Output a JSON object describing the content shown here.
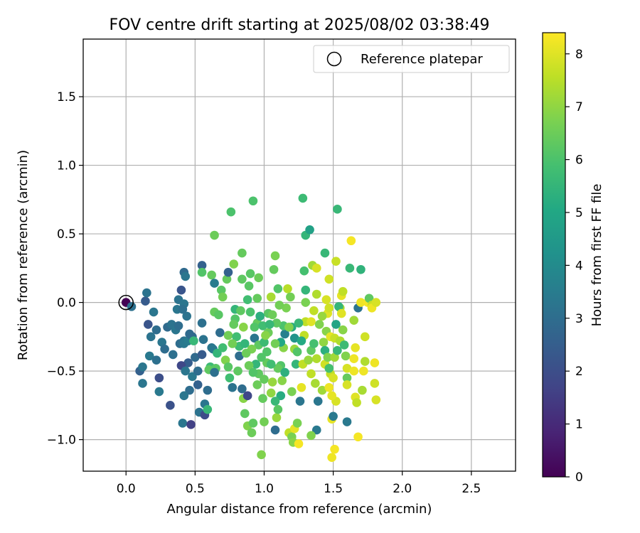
{
  "chart_data": {
    "type": "scatter",
    "title": "FOV centre drift starting at 2025/08/02 03:38:49",
    "xlabel": "Angular distance from reference (arcmin)",
    "ylabel": "Rotation from reference (arcmin)",
    "xlim": [
      -0.31,
      2.82
    ],
    "ylim": [
      -1.23,
      1.92
    ],
    "xticks": [
      "0.0",
      "0.5",
      "1.0",
      "1.5",
      "2.0",
      "2.5"
    ],
    "xtick_values": [
      0,
      0.5,
      1.0,
      1.5,
      2.0,
      2.5
    ],
    "yticks": [
      "−1.0",
      "−0.5",
      "0.0",
      "0.5",
      "1.0",
      "1.5"
    ],
    "ytick_values": [
      -1.0,
      -0.5,
      0,
      0.5,
      1.0,
      1.5
    ],
    "grid": true,
    "legend": {
      "position": "top-right",
      "label": "Reference platepar"
    },
    "reference_point": {
      "x": 0.0,
      "y": 0.0
    },
    "colorbar": {
      "label": "Hours from first FF file",
      "range": [
        0,
        8.4
      ],
      "ticks": [
        "0",
        "1",
        "2",
        "3",
        "4",
        "5",
        "6",
        "7",
        "8"
      ],
      "tick_values": [
        0,
        1,
        2,
        3,
        4,
        5,
        6,
        7,
        8
      ],
      "colormap": "viridis"
    },
    "points_note_fields": [
      "x",
      "y",
      "hours"
    ],
    "points": [
      [
        0.0,
        0.0,
        0.0
      ],
      [
        0.04,
        -0.03,
        3.1
      ],
      [
        0.14,
        0.01,
        2.4
      ],
      [
        0.15,
        0.07,
        3.2
      ],
      [
        0.16,
        -0.16,
        2.2
      ],
      [
        0.2,
        -0.07,
        3.3
      ],
      [
        0.22,
        -0.2,
        3.0
      ],
      [
        0.18,
        -0.25,
        3.2
      ],
      [
        0.1,
        -0.5,
        2.6
      ],
      [
        0.12,
        -0.47,
        3.3
      ],
      [
        0.17,
        -0.39,
        3.4
      ],
      [
        0.22,
        -0.42,
        3.1
      ],
      [
        0.12,
        -0.59,
        3.3
      ],
      [
        0.24,
        -0.55,
        2.0
      ],
      [
        0.24,
        -0.65,
        3.4
      ],
      [
        0.26,
        -0.29,
        3.3
      ],
      [
        0.3,
        -0.18,
        2.9
      ],
      [
        0.33,
        -0.16,
        3.2
      ],
      [
        0.28,
        -0.34,
        3.0
      ],
      [
        0.34,
        -0.38,
        3.1
      ],
      [
        0.32,
        -0.75,
        2.1
      ],
      [
        0.36,
        -0.2,
        3.3
      ],
      [
        0.38,
        -0.17,
        3.0
      ],
      [
        0.39,
        -0.3,
        3.0
      ],
      [
        0.42,
        -0.28,
        3.2
      ],
      [
        0.42,
        -0.3,
        3.4
      ],
      [
        0.45,
        -0.28,
        3.5
      ],
      [
        0.38,
        0.02,
        3.2
      ],
      [
        0.4,
        0.09,
        2.2
      ],
      [
        0.37,
        -0.05,
        3.3
      ],
      [
        0.42,
        0.22,
        2.9
      ],
      [
        0.43,
        0.19,
        3.3
      ],
      [
        0.42,
        -0.01,
        3.3
      ],
      [
        0.44,
        -0.1,
        3.2
      ],
      [
        0.41,
        -0.05,
        3.1
      ],
      [
        0.46,
        -0.23,
        2.9
      ],
      [
        0.48,
        -0.25,
        2.9
      ],
      [
        0.49,
        -0.28,
        5.6
      ],
      [
        0.45,
        -0.44,
        2.5
      ],
      [
        0.4,
        -0.46,
        1.8
      ],
      [
        0.43,
        -0.5,
        3.3
      ],
      [
        0.46,
        -0.64,
        3.0
      ],
      [
        0.42,
        -0.68,
        3.3
      ],
      [
        0.41,
        -0.88,
        3.3
      ],
      [
        0.47,
        -0.89,
        1.6
      ],
      [
        0.48,
        -0.54,
        3.4
      ],
      [
        0.52,
        -0.5,
        3.0
      ],
      [
        0.5,
        -0.4,
        2.9
      ],
      [
        0.52,
        -0.6,
        2.6
      ],
      [
        0.55,
        -0.38,
        2.4
      ],
      [
        0.56,
        -0.27,
        3.2
      ],
      [
        0.55,
        -0.15,
        3.1
      ],
      [
        0.53,
        -0.8,
        3.2
      ],
      [
        0.57,
        -0.74,
        3.3
      ],
      [
        0.57,
        -0.82,
        1.9
      ],
      [
        0.59,
        -0.78,
        5.6
      ],
      [
        0.59,
        -0.64,
        3.0
      ],
      [
        0.55,
        0.27,
        2.6
      ],
      [
        0.55,
        0.22,
        6.1
      ],
      [
        0.62,
        0.2,
        6.4
      ],
      [
        0.61,
        -0.47,
        5.7
      ],
      [
        0.6,
        -0.49,
        6.3
      ],
      [
        0.62,
        -0.33,
        3.3
      ],
      [
        0.63,
        -0.34,
        3.4
      ],
      [
        0.65,
        -0.48,
        6.2
      ],
      [
        0.64,
        -0.51,
        3.1
      ],
      [
        0.64,
        -0.07,
        6.4
      ],
      [
        0.64,
        0.14,
        3.5
      ],
      [
        0.64,
        0.49,
        6.5
      ],
      [
        0.67,
        -0.09,
        6.2
      ],
      [
        0.66,
        -0.37,
        5.5
      ],
      [
        0.68,
        -0.22,
        3.0
      ],
      [
        0.69,
        0.09,
        6.2
      ],
      [
        0.7,
        0.04,
        6.6
      ],
      [
        0.73,
        0.17,
        6.4
      ],
      [
        0.74,
        0.22,
        2.6
      ],
      [
        0.74,
        -0.24,
        6.6
      ],
      [
        0.77,
        -0.62,
        3.2
      ],
      [
        0.76,
        0.66,
        6.0
      ],
      [
        0.78,
        0.28,
        6.8
      ],
      [
        0.79,
        -0.12,
        6.1
      ],
      [
        0.8,
        -0.25,
        5.8
      ],
      [
        0.82,
        -0.32,
        5.7
      ],
      [
        0.82,
        -0.39,
        3.0
      ],
      [
        0.81,
        -0.5,
        6.3
      ],
      [
        0.84,
        -0.63,
        3.0
      ],
      [
        0.85,
        -0.7,
        6.9
      ],
      [
        0.88,
        -0.68,
        1.8
      ],
      [
        0.86,
        -0.81,
        6.3
      ],
      [
        0.88,
        -0.9,
        6.8
      ],
      [
        0.84,
        0.17,
        6.3
      ],
      [
        0.84,
        0.36,
        6.4
      ],
      [
        0.89,
        0.12,
        6.2
      ],
      [
        0.9,
        0.21,
        6.2
      ],
      [
        0.92,
        0.74,
        6.0
      ],
      [
        0.96,
        0.18,
        6.5
      ],
      [
        0.88,
        0.02,
        5.8
      ],
      [
        0.9,
        -0.07,
        6.0
      ],
      [
        0.95,
        -0.15,
        6.4
      ],
      [
        0.93,
        -0.26,
        3.3
      ],
      [
        0.96,
        -0.31,
        6.3
      ],
      [
        0.91,
        -0.34,
        6.7
      ],
      [
        0.94,
        -0.45,
        5.5
      ],
      [
        0.96,
        -0.52,
        6.3
      ],
      [
        0.91,
        -0.95,
        6.5
      ],
      [
        0.92,
        -0.88,
        6.3
      ],
      [
        0.99,
        -0.7,
        6.4
      ],
      [
        1.0,
        -0.56,
        6.4
      ],
      [
        1.02,
        -0.44,
        6.4
      ],
      [
        1.03,
        -0.22,
        6.5
      ],
      [
        1.03,
        -0.08,
        6.2
      ],
      [
        1.05,
        0.04,
        7.3
      ],
      [
        1.07,
        0.24,
        6.4
      ],
      [
        1.08,
        0.34,
        6.7
      ],
      [
        1.08,
        -0.93,
        3.0
      ],
      [
        1.09,
        -0.84,
        7.1
      ],
      [
        1.12,
        -0.68,
        5.2
      ],
      [
        1.12,
        -0.46,
        6.1
      ],
      [
        1.1,
        -0.48,
        6.4
      ],
      [
        1.14,
        -0.33,
        6.9
      ],
      [
        1.15,
        -0.23,
        3.6
      ],
      [
        1.16,
        -0.04,
        6.7
      ],
      [
        1.17,
        0.1,
        7.5
      ],
      [
        1.19,
        0.04,
        6.6
      ],
      [
        1.2,
        -0.18,
        5.2
      ],
      [
        1.22,
        -0.34,
        7.1
      ],
      [
        1.23,
        -0.45,
        5.5
      ],
      [
        1.2,
        -0.65,
        6.7
      ],
      [
        1.18,
        -0.95,
        7.6
      ],
      [
        1.2,
        -0.98,
        6.7
      ],
      [
        1.21,
        -1.02,
        6.9
      ],
      [
        1.22,
        -0.92,
        8.1
      ],
      [
        1.24,
        -0.88,
        6.7
      ],
      [
        1.25,
        -1.03,
        8.3
      ],
      [
        1.26,
        -0.72,
        3.3
      ],
      [
        1.27,
        -0.62,
        8.1
      ],
      [
        1.28,
        -0.45,
        7.6
      ],
      [
        1.29,
        -0.24,
        7.6
      ],
      [
        1.3,
        -0.14,
        7.6
      ],
      [
        1.3,
        0.0,
        6.7
      ],
      [
        1.3,
        0.09,
        5.5
      ],
      [
        1.29,
        0.23,
        5.9
      ],
      [
        1.28,
        0.76,
        5.7
      ],
      [
        1.3,
        0.49,
        5.5
      ],
      [
        1.33,
        0.53,
        4.8
      ],
      [
        1.35,
        0.27,
        7.2
      ],
      [
        1.38,
        0.25,
        7.9
      ],
      [
        1.38,
        0.06,
        7.4
      ],
      [
        1.36,
        -0.06,
        7.6
      ],
      [
        1.34,
        -0.14,
        8.0
      ],
      [
        1.34,
        -0.35,
        6.3
      ],
      [
        1.38,
        -0.41,
        7.4
      ],
      [
        1.37,
        -0.59,
        7.3
      ],
      [
        1.39,
        -0.72,
        3.3
      ],
      [
        1.38,
        -0.93,
        3.4
      ],
      [
        1.34,
        -0.97,
        6.8
      ],
      [
        1.42,
        -0.64,
        7.2
      ],
      [
        1.44,
        -0.45,
        7.8
      ],
      [
        1.45,
        -0.21,
        6.9
      ],
      [
        1.46,
        -0.08,
        8.0
      ],
      [
        1.45,
        0.02,
        7.9
      ],
      [
        1.47,
        0.17,
        7.8
      ],
      [
        1.44,
        0.36,
        5.6
      ],
      [
        1.47,
        -0.04,
        7.8
      ],
      [
        1.48,
        -0.25,
        8.1
      ],
      [
        1.48,
        -0.52,
        7.6
      ],
      [
        1.5,
        -0.55,
        7.9
      ],
      [
        1.47,
        -0.62,
        8.2
      ],
      [
        1.52,
        -0.72,
        7.9
      ],
      [
        1.49,
        -0.68,
        8.1
      ],
      [
        1.49,
        -0.85,
        8.1
      ],
      [
        1.49,
        -1.13,
        8.2
      ],
      [
        1.51,
        -1.07,
        8.3
      ],
      [
        1.5,
        -0.83,
        3.4
      ],
      [
        1.51,
        -0.26,
        7.7
      ],
      [
        1.52,
        -0.16,
        4.9
      ],
      [
        1.52,
        0.3,
        7.7
      ],
      [
        1.53,
        0.68,
        5.6
      ],
      [
        1.55,
        -0.04,
        7.3
      ],
      [
        1.54,
        -0.03,
        5.5
      ],
      [
        1.56,
        -0.08,
        8.0
      ],
      [
        1.56,
        0.05,
        8.1
      ],
      [
        1.57,
        0.08,
        7.6
      ],
      [
        1.59,
        -0.39,
        6.8
      ],
      [
        1.6,
        -0.48,
        7.9
      ],
      [
        1.6,
        -0.55,
        6.4
      ],
      [
        1.6,
        -0.6,
        7.9
      ],
      [
        1.6,
        -0.87,
        3.4
      ],
      [
        1.62,
        0.25,
        5.6
      ],
      [
        1.63,
        0.45,
        8.3
      ],
      [
        1.65,
        -0.13,
        7.2
      ],
      [
        1.66,
        -0.33,
        8.1
      ],
      [
        1.65,
        -0.41,
        8.2
      ],
      [
        1.65,
        -0.5,
        8.2
      ],
      [
        1.66,
        -0.69,
        8.0
      ],
      [
        1.67,
        -0.73,
        7.6
      ],
      [
        1.68,
        -0.98,
        8.3
      ],
      [
        1.68,
        -0.04,
        3.2
      ],
      [
        1.7,
        0.0,
        8.2
      ],
      [
        1.7,
        0.24,
        5.4
      ],
      [
        1.71,
        -0.64,
        7.3
      ],
      [
        1.72,
        -0.5,
        8.2
      ],
      [
        1.73,
        -0.43,
        7.4
      ],
      [
        1.73,
        -0.25,
        7.8
      ],
      [
        1.75,
        0.0,
        8.3
      ],
      [
        1.76,
        0.03,
        6.3
      ],
      [
        1.78,
        -0.02,
        7.7
      ],
      [
        1.78,
        -0.04,
        8.2
      ],
      [
        1.8,
        -0.44,
        8.2
      ],
      [
        1.8,
        -0.59,
        7.8
      ],
      [
        1.81,
        -0.71,
        7.9
      ],
      [
        1.81,
        0.0,
        7.9
      ],
      [
        0.98,
        -1.11,
        6.8
      ],
      [
        1.0,
        -0.87,
        6.6
      ],
      [
        1.05,
        -0.66,
        7.0
      ],
      [
        1.08,
        -0.72,
        5.6
      ],
      [
        1.1,
        -0.78,
        6.2
      ],
      [
        1.13,
        -0.57,
        6.9
      ],
      [
        1.15,
        -0.51,
        5.3
      ],
      [
        1.12,
        -0.29,
        5.0
      ],
      [
        1.14,
        -0.17,
        6.0
      ],
      [
        1.18,
        -0.18,
        6.8
      ],
      [
        1.22,
        -0.26,
        4.3
      ],
      [
        1.24,
        -0.36,
        6.1
      ],
      [
        1.27,
        -0.28,
        5.1
      ],
      [
        1.25,
        -0.15,
        5.6
      ],
      [
        1.32,
        -0.42,
        7.1
      ],
      [
        1.34,
        -0.52,
        7.6
      ],
      [
        1.36,
        -0.3,
        5.9
      ],
      [
        1.4,
        -0.16,
        6.8
      ],
      [
        1.42,
        -0.1,
        7.1
      ],
      [
        1.43,
        -0.29,
        7.0
      ],
      [
        1.44,
        -0.35,
        5.3
      ],
      [
        1.46,
        -0.4,
        6.8
      ],
      [
        1.47,
        -0.48,
        5.9
      ],
      [
        1.51,
        -0.4,
        7.2
      ],
      [
        1.53,
        -0.35,
        5.6
      ],
      [
        1.55,
        -0.28,
        7.4
      ],
      [
        1.57,
        -0.2,
        6.9
      ],
      [
        1.58,
        -0.31,
        5.7
      ],
      [
        0.95,
        -0.6,
        6.5
      ],
      [
        0.98,
        -0.4,
        6.1
      ],
      [
        1.0,
        -0.29,
        5.7
      ],
      [
        1.02,
        -0.36,
        6.1
      ],
      [
        1.05,
        -0.45,
        5.8
      ],
      [
        1.06,
        -0.58,
        7.1
      ],
      [
        1.08,
        -0.3,
        6.6
      ],
      [
        1.09,
        -0.15,
        6.3
      ],
      [
        1.11,
        -0.02,
        6.6
      ],
      [
        1.1,
        0.1,
        6.1
      ],
      [
        0.7,
        -0.33,
        5.8
      ],
      [
        0.72,
        -0.42,
        6.8
      ],
      [
        0.74,
        -0.47,
        6.2
      ],
      [
        0.75,
        -0.55,
        5.8
      ],
      [
        0.77,
        -0.3,
        6.6
      ],
      [
        0.78,
        -0.16,
        6.4
      ],
      [
        0.79,
        -0.05,
        5.5
      ],
      [
        0.83,
        -0.06,
        6.3
      ],
      [
        0.85,
        -0.18,
        6.9
      ],
      [
        0.86,
        -0.3,
        5.5
      ],
      [
        0.87,
        -0.37,
        6.5
      ],
      [
        0.89,
        -0.46,
        6.5
      ],
      [
        0.92,
        -0.51,
        6.1
      ],
      [
        0.93,
        -0.18,
        6.1
      ],
      [
        0.95,
        0.03,
        6.4
      ],
      [
        0.97,
        -0.1,
        5.3
      ],
      [
        0.99,
        -0.17,
        5.8
      ],
      [
        1.01,
        -0.24,
        6.9
      ],
      [
        1.04,
        -0.16,
        5.6
      ],
      [
        1.06,
        -0.09,
        6.5
      ]
    ]
  }
}
